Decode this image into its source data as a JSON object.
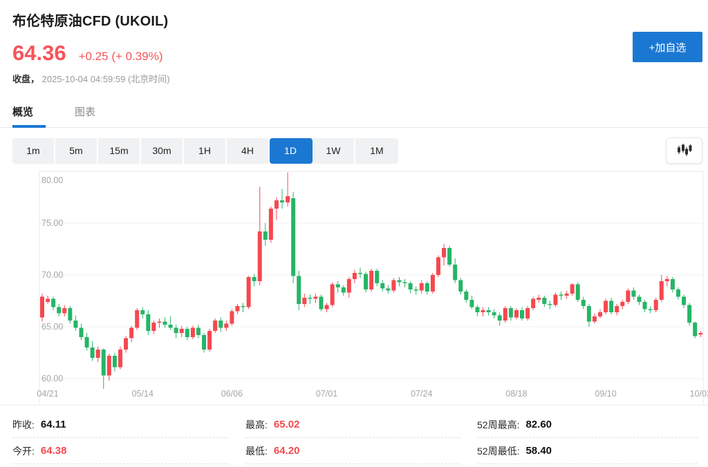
{
  "header": {
    "title": "布伦特原油CFD (UKOIL)",
    "price": "64.36",
    "change": "+0.25 (+ 0.39%)",
    "status_label": "收盘，",
    "timestamp": "2025-10-04 04:59:59 (北京时间)",
    "add_watchlist_label": "+加自选"
  },
  "tabs": [
    {
      "label": "概览",
      "active": true
    },
    {
      "label": "图表",
      "active": false
    }
  ],
  "toolbar": {
    "timeframes": [
      "1m",
      "5m",
      "15m",
      "30m",
      "1H",
      "4H",
      "1D",
      "1W",
      "1M"
    ],
    "active_timeframe": "1D",
    "chart_type_icon": "candlestick-chart-icon"
  },
  "stats": [
    [
      {
        "label": "昨收:",
        "value": "64.11",
        "color": "dark"
      },
      {
        "label": "今开:",
        "value": "64.38",
        "color": "red"
      }
    ],
    [
      {
        "label": "最高:",
        "value": "65.02",
        "color": "red"
      },
      {
        "label": "最低:",
        "value": "64.20",
        "color": "red"
      }
    ],
    [
      {
        "label": "52周最高:",
        "value": "82.60",
        "color": "dark"
      },
      {
        "label": "52周最低:",
        "value": "58.40",
        "color": "dark"
      }
    ]
  ],
  "colors": {
    "up": "#f5484f",
    "down": "#26b567",
    "accent": "#1b78d2",
    "axis_text": "#a6a6a6",
    "grid": "#f1f1f1",
    "border": "#e9e9e9"
  },
  "chart_data": {
    "type": "candlestick",
    "title": "布伦特原油CFD (UKOIL) 日线",
    "up_color_meaning": "red = up (Chinese convention)",
    "y_ticks": [
      {
        "label": "80.00",
        "price": 80
      },
      {
        "label": "75.00",
        "price": 75
      },
      {
        "label": "70.00",
        "price": 70
      },
      {
        "label": "65.00",
        "price": 65
      },
      {
        "label": "60.00",
        "price": 60
      }
    ],
    "y_range": [
      58.8,
      80.1
    ],
    "x_ticks": [
      {
        "label": "04/21",
        "index": 1
      },
      {
        "label": "05/14",
        "index": 18
      },
      {
        "label": "06/06",
        "index": 34
      },
      {
        "label": "07/01",
        "index": 51
      },
      {
        "label": "07/24",
        "index": 68
      },
      {
        "label": "08/18",
        "index": 85
      },
      {
        "label": "09/10",
        "index": 101
      },
      {
        "label": "10/03",
        "index": 118
      }
    ],
    "candles": [
      [
        65.9,
        68.2,
        65.5,
        67.9
      ],
      [
        67.4,
        68.0,
        67.2,
        67.7
      ],
      [
        67.7,
        67.9,
        66.6,
        66.9
      ],
      [
        66.9,
        67.2,
        66.0,
        66.3
      ],
      [
        66.3,
        67.1,
        66.0,
        66.8
      ],
      [
        66.8,
        67.0,
        65.3,
        65.6
      ],
      [
        65.6,
        66.1,
        64.6,
        64.9
      ],
      [
        64.9,
        65.3,
        63.7,
        64.0
      ],
      [
        64.0,
        64.4,
        62.7,
        63.0
      ],
      [
        63.0,
        63.6,
        61.7,
        62.0
      ],
      [
        62.0,
        63.1,
        61.6,
        62.8
      ],
      [
        62.8,
        62.9,
        59.0,
        60.3
      ],
      [
        60.3,
        62.4,
        59.8,
        62.2
      ],
      [
        62.2,
        62.5,
        60.7,
        61.1
      ],
      [
        61.1,
        63.1,
        60.9,
        62.8
      ],
      [
        62.8,
        64.1,
        62.5,
        63.9
      ],
      [
        63.9,
        65.1,
        63.5,
        64.9
      ],
      [
        64.9,
        66.8,
        64.7,
        66.6
      ],
      [
        66.6,
        66.9,
        65.8,
        66.2
      ],
      [
        66.2,
        66.6,
        64.2,
        64.6
      ],
      [
        64.6,
        65.6,
        64.3,
        65.4
      ],
      [
        65.4,
        65.8,
        64.9,
        65.5
      ],
      [
        65.5,
        65.9,
        64.9,
        65.2
      ],
      [
        65.2,
        66.0,
        64.7,
        64.9
      ],
      [
        64.9,
        65.2,
        63.9,
        64.4
      ],
      [
        64.4,
        65.1,
        64.0,
        64.8
      ],
      [
        64.8,
        65.0,
        63.7,
        64.0
      ],
      [
        64.0,
        65.1,
        63.8,
        64.9
      ],
      [
        64.9,
        65.2,
        63.9,
        64.2
      ],
      [
        64.2,
        64.4,
        62.5,
        62.8
      ],
      [
        62.8,
        64.8,
        62.6,
        64.6
      ],
      [
        64.6,
        65.8,
        64.4,
        65.6
      ],
      [
        65.6,
        65.9,
        64.5,
        64.9
      ],
      [
        64.9,
        65.6,
        64.6,
        65.3
      ],
      [
        65.3,
        66.7,
        65.1,
        66.5
      ],
      [
        66.5,
        67.2,
        66.2,
        67.0
      ],
      [
        67.0,
        67.3,
        66.4,
        66.9
      ],
      [
        66.9,
        69.9,
        66.7,
        69.8
      ],
      [
        69.8,
        70.1,
        68.9,
        69.4
      ],
      [
        69.4,
        78.5,
        69.0,
        74.2
      ],
      [
        74.2,
        75.0,
        72.8,
        73.4
      ],
      [
        73.4,
        76.6,
        73.1,
        76.4
      ],
      [
        76.4,
        77.5,
        75.3,
        77.2
      ],
      [
        77.2,
        78.3,
        76.4,
        77.0
      ],
      [
        77.0,
        79.9,
        76.6,
        77.6
      ],
      [
        77.4,
        78.0,
        69.2,
        69.9
      ],
      [
        69.9,
        70.4,
        66.6,
        67.2
      ],
      [
        67.2,
        68.2,
        66.9,
        67.8
      ],
      [
        67.8,
        68.1,
        67.2,
        67.7
      ],
      [
        67.7,
        68.2,
        67.3,
        67.9
      ],
      [
        67.9,
        68.1,
        66.5,
        66.7
      ],
      [
        66.7,
        67.3,
        66.4,
        67.1
      ],
      [
        67.1,
        69.3,
        66.9,
        69.1
      ],
      [
        69.1,
        69.4,
        68.3,
        68.8
      ],
      [
        68.8,
        69.0,
        68.0,
        68.3
      ],
      [
        68.3,
        69.8,
        67.8,
        69.6
      ],
      [
        69.6,
        70.5,
        69.2,
        70.2
      ],
      [
        70.2,
        70.7,
        69.7,
        70.1
      ],
      [
        70.1,
        70.3,
        68.3,
        68.6
      ],
      [
        68.6,
        70.6,
        68.4,
        70.4
      ],
      [
        70.4,
        70.6,
        68.9,
        69.2
      ],
      [
        69.2,
        69.5,
        68.4,
        68.7
      ],
      [
        68.7,
        69.0,
        68.2,
        68.5
      ],
      [
        68.5,
        69.7,
        68.3,
        69.5
      ],
      [
        69.5,
        69.8,
        68.9,
        69.3
      ],
      [
        69.3,
        69.6,
        68.8,
        69.2
      ],
      [
        69.2,
        69.4,
        68.2,
        68.6
      ],
      [
        68.6,
        68.9,
        68.1,
        68.5
      ],
      [
        68.5,
        69.5,
        68.2,
        69.2
      ],
      [
        69.2,
        69.4,
        68.1,
        68.4
      ],
      [
        68.4,
        70.2,
        68.2,
        70.0
      ],
      [
        70.0,
        71.9,
        69.8,
        71.7
      ],
      [
        71.7,
        73.0,
        70.9,
        72.6
      ],
      [
        72.6,
        72.8,
        70.8,
        71.0
      ],
      [
        71.0,
        71.6,
        69.2,
        69.5
      ],
      [
        69.5,
        69.7,
        68.1,
        68.4
      ],
      [
        68.4,
        68.6,
        67.3,
        67.6
      ],
      [
        67.6,
        68.0,
        66.7,
        66.9
      ],
      [
        66.9,
        67.1,
        66.0,
        66.4
      ],
      [
        66.4,
        66.9,
        66.0,
        66.6
      ],
      [
        66.6,
        66.9,
        66.1,
        66.4
      ],
      [
        66.4,
        66.7,
        65.8,
        66.1
      ],
      [
        66.1,
        66.4,
        65.1,
        65.6
      ],
      [
        65.6,
        67.0,
        65.4,
        66.8
      ],
      [
        66.8,
        67.0,
        65.6,
        65.9
      ],
      [
        65.9,
        66.8,
        65.7,
        66.6
      ],
      [
        66.6,
        66.9,
        65.6,
        65.8
      ],
      [
        65.8,
        67.0,
        65.6,
        66.8
      ],
      [
        66.8,
        67.9,
        66.6,
        67.7
      ],
      [
        67.6,
        68.1,
        67.3,
        67.8
      ],
      [
        67.8,
        68.0,
        66.9,
        67.2
      ],
      [
        67.2,
        67.5,
        66.7,
        67.1
      ],
      [
        67.1,
        68.3,
        66.9,
        68.1
      ],
      [
        68.1,
        68.4,
        67.6,
        68.0
      ],
      [
        68.0,
        68.5,
        67.7,
        68.2
      ],
      [
        68.2,
        69.2,
        68.0,
        69.1
      ],
      [
        69.1,
        69.3,
        67.4,
        67.6
      ],
      [
        67.6,
        67.9,
        66.7,
        67.0
      ],
      [
        67.0,
        67.2,
        65.0,
        65.5
      ],
      [
        65.5,
        66.3,
        65.3,
        66.0
      ],
      [
        66.0,
        66.7,
        65.8,
        66.4
      ],
      [
        66.4,
        67.7,
        66.2,
        67.5
      ],
      [
        67.5,
        67.8,
        66.2,
        66.4
      ],
      [
        66.4,
        67.2,
        66.1,
        67.0
      ],
      [
        67.0,
        67.6,
        66.7,
        67.4
      ],
      [
        67.4,
        68.7,
        67.2,
        68.5
      ],
      [
        68.5,
        68.8,
        67.6,
        67.9
      ],
      [
        67.9,
        68.1,
        67.1,
        67.4
      ],
      [
        67.4,
        67.6,
        66.4,
        66.7
      ],
      [
        66.7,
        67.0,
        66.3,
        66.6
      ],
      [
        66.6,
        67.8,
        66.4,
        67.6
      ],
      [
        67.6,
        70.0,
        67.4,
        69.4
      ],
      [
        69.4,
        69.9,
        68.9,
        69.6
      ],
      [
        69.6,
        69.8,
        68.3,
        68.6
      ],
      [
        68.6,
        68.8,
        67.6,
        67.9
      ],
      [
        67.9,
        68.1,
        66.8,
        67.1
      ],
      [
        67.1,
        67.3,
        65.1,
        65.4
      ],
      [
        65.4,
        65.5,
        63.9,
        64.1
      ],
      [
        64.25,
        64.6,
        64.0,
        64.4
      ]
    ]
  }
}
